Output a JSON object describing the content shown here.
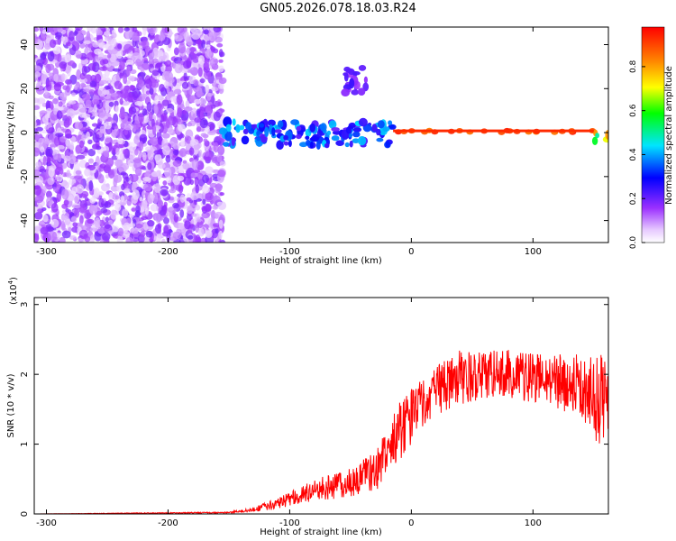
{
  "title": "GN05.2026.078.18.03.R24",
  "chart_data": [
    {
      "type": "heatmap",
      "xlabel": "Height of straight line (km)",
      "ylabel": "Frequency (Hz)",
      "xlim": [
        -310,
        162
      ],
      "ylim": [
        -50,
        48
      ],
      "x_ticks": [
        -300,
        -200,
        -100,
        0,
        100
      ],
      "y_ticks": [
        -40,
        -20,
        0,
        20,
        40
      ],
      "colorbar": {
        "label": "Normalized spectral amplitude",
        "range": [
          0,
          0.98
        ],
        "ticks": [
          0.0,
          0.2,
          0.4,
          0.6,
          0.8
        ],
        "colors": [
          "#ffffff",
          "#9b30ff",
          "#0000ff",
          "#00e5ff",
          "#00ff00",
          "#ffff00",
          "#ff0000"
        ]
      },
      "regions": [
        {
          "x": [
            -310,
            -155
          ],
          "freq": [
            -50,
            48
          ],
          "amplitude": [
            0.03,
            0.2
          ],
          "note": "scattered noise"
        },
        {
          "x": [
            -155,
            -15
          ],
          "freq": [
            -6,
            5
          ],
          "amplitude": [
            0.2,
            0.45
          ]
        },
        {
          "x": [
            -55,
            -35
          ],
          "freq": [
            18,
            30
          ],
          "amplitude": [
            0.15,
            0.25
          ]
        },
        {
          "x": [
            -15,
            150
          ],
          "freq": [
            0,
            1
          ],
          "amplitude": [
            0.85,
            0.98
          ]
        },
        {
          "x": [
            150,
            162
          ],
          "freq": [
            -4,
            0
          ],
          "amplitude": [
            0.5,
            0.9
          ]
        }
      ]
    },
    {
      "type": "line",
      "xlabel": "Height of straight line (km)",
      "ylabel": "SNR (10 * v/v)",
      "y_multiplier": "(x10",
      "y_multiplier_exp": "4",
      "xlim": [
        -310,
        162
      ],
      "ylim": [
        0,
        3.1
      ],
      "x_ticks": [
        -300,
        -200,
        -100,
        0,
        100
      ],
      "y_ticks": [
        0,
        1,
        2,
        3
      ],
      "series": [
        {
          "color": "#ff0000",
          "x": [
            -310,
            -150,
            -130,
            -110,
            -90,
            -70,
            -50,
            -30,
            -20,
            -10,
            0,
            10,
            20,
            40,
            60,
            80,
            100,
            120,
            140,
            155,
            162
          ],
          "mean": [
            0.0,
            0.02,
            0.06,
            0.15,
            0.28,
            0.38,
            0.45,
            0.6,
            0.85,
            1.2,
            1.4,
            1.6,
            1.8,
            1.95,
            2.0,
            2.0,
            1.95,
            1.9,
            1.85,
            1.6,
            1.5
          ],
          "spread": [
            0.0,
            0.01,
            0.03,
            0.08,
            0.12,
            0.18,
            0.2,
            0.3,
            0.35,
            0.45,
            0.4,
            0.35,
            0.4,
            0.4,
            0.35,
            0.35,
            0.35,
            0.4,
            0.45,
            0.7,
            0.7
          ]
        }
      ]
    }
  ]
}
